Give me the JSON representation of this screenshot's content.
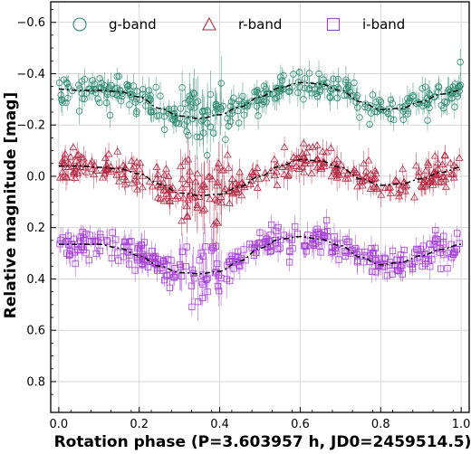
{
  "chart_data": {
    "type": "scatter",
    "xlabel": "Rotation phase (P=3.603957 h, JD0=2459514.5)",
    "ylabel": "Relative magnitude [mag]",
    "xlim": [
      -0.02,
      1.02
    ],
    "ylim": [
      0.92,
      -0.68
    ],
    "y_inverted": true,
    "grid": true,
    "legend": "top, single row",
    "x_ticks": [
      "0.0",
      "0.2",
      "0.4",
      "0.6",
      "0.8",
      "1.0"
    ],
    "x_tick_values": [
      0.0,
      0.2,
      0.4,
      0.6,
      0.8,
      1.0
    ],
    "y_ticks": [
      "−0.6",
      "−0.4",
      "−0.2",
      "0.0",
      "0.2",
      "0.4",
      "0.6",
      "0.8"
    ],
    "y_tick_values": [
      -0.6,
      -0.4,
      -0.2,
      0.0,
      0.2,
      0.4,
      0.6,
      0.8
    ],
    "series": [
      {
        "name": "g-band",
        "marker": "circle",
        "color": "#2e8b6e",
        "fit_curve": {
          "x": [
            0.0,
            0.05,
            0.1,
            0.15,
            0.2,
            0.25,
            0.3,
            0.35,
            0.4,
            0.45,
            0.5,
            0.55,
            0.6,
            0.65,
            0.7,
            0.75,
            0.8,
            0.85,
            0.9,
            0.95,
            1.0
          ],
          "y": [
            -0.34,
            -0.335,
            -0.335,
            -0.33,
            -0.31,
            -0.265,
            -0.235,
            -0.225,
            -0.24,
            -0.27,
            -0.31,
            -0.345,
            -0.365,
            -0.36,
            -0.335,
            -0.29,
            -0.26,
            -0.265,
            -0.29,
            -0.32,
            -0.335
          ]
        }
      },
      {
        "name": "r-band",
        "marker": "triangle",
        "color": "#b52a45",
        "fit_curve": {
          "x": [
            0.0,
            0.05,
            0.1,
            0.15,
            0.2,
            0.25,
            0.3,
            0.35,
            0.4,
            0.45,
            0.5,
            0.55,
            0.6,
            0.65,
            0.7,
            0.75,
            0.8,
            0.85,
            0.9,
            0.95,
            1.0
          ],
          "y": [
            -0.04,
            -0.04,
            -0.035,
            -0.03,
            -0.01,
            0.03,
            0.065,
            0.075,
            0.07,
            0.04,
            0.0,
            -0.04,
            -0.065,
            -0.06,
            -0.035,
            0.01,
            0.035,
            0.03,
            0.01,
            -0.015,
            -0.035
          ]
        }
      },
      {
        "name": "i-band",
        "marker": "square",
        "color": "#a63fd6",
        "fit_curve": {
          "x": [
            0.0,
            0.05,
            0.1,
            0.15,
            0.2,
            0.25,
            0.3,
            0.35,
            0.4,
            0.45,
            0.5,
            0.55,
            0.6,
            0.65,
            0.7,
            0.75,
            0.8,
            0.85,
            0.9,
            0.95,
            1.0
          ],
          "y": [
            0.265,
            0.265,
            0.265,
            0.28,
            0.31,
            0.35,
            0.375,
            0.38,
            0.37,
            0.33,
            0.28,
            0.245,
            0.235,
            0.245,
            0.27,
            0.315,
            0.345,
            0.335,
            0.31,
            0.285,
            0.265
          ]
        }
      }
    ]
  }
}
